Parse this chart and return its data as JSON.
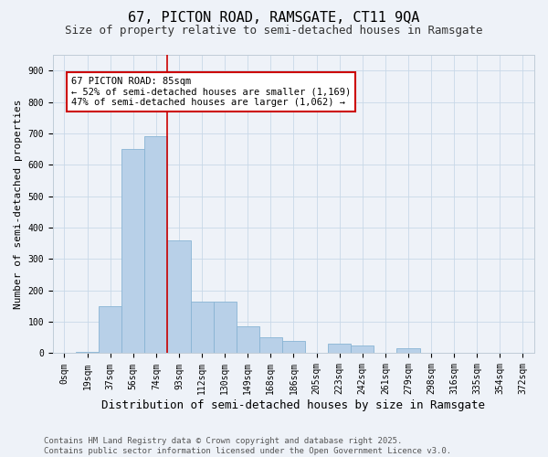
{
  "title1": "67, PICTON ROAD, RAMSGATE, CT11 9QA",
  "title2": "Size of property relative to semi-detached houses in Ramsgate",
  "xlabel": "Distribution of semi-detached houses by size in Ramsgate",
  "ylabel": "Number of semi-detached properties",
  "categories": [
    "0sqm",
    "19sqm",
    "37sqm",
    "56sqm",
    "74sqm",
    "93sqm",
    "112sqm",
    "130sqm",
    "149sqm",
    "168sqm",
    "186sqm",
    "205sqm",
    "223sqm",
    "242sqm",
    "261sqm",
    "279sqm",
    "298sqm",
    "316sqm",
    "335sqm",
    "354sqm",
    "372sqm"
  ],
  "values": [
    2,
    5,
    150,
    650,
    690,
    360,
    165,
    165,
    85,
    50,
    40,
    0,
    30,
    25,
    0,
    15,
    0,
    0,
    0,
    0,
    0
  ],
  "bar_color": "#b8d0e8",
  "bar_edge_color": "#89b4d4",
  "vline_x": 4.5,
  "annotation_text": "67 PICTON ROAD: 85sqm\n← 52% of semi-detached houses are smaller (1,169)\n47% of semi-detached houses are larger (1,062) →",
  "annotation_box_color": "#ffffff",
  "annotation_box_edge": "#cc0000",
  "vline_color": "#cc0000",
  "ylim": [
    0,
    950
  ],
  "yticks": [
    0,
    100,
    200,
    300,
    400,
    500,
    600,
    700,
    800,
    900
  ],
  "grid_color": "#c8d8e8",
  "bg_color": "#eef2f8",
  "footer": "Contains HM Land Registry data © Crown copyright and database right 2025.\nContains public sector information licensed under the Open Government Licence v3.0.",
  "title1_fontsize": 11,
  "title2_fontsize": 9,
  "xlabel_fontsize": 9,
  "ylabel_fontsize": 8,
  "tick_fontsize": 7,
  "footer_fontsize": 6.5,
  "annot_fontsize": 7.5
}
